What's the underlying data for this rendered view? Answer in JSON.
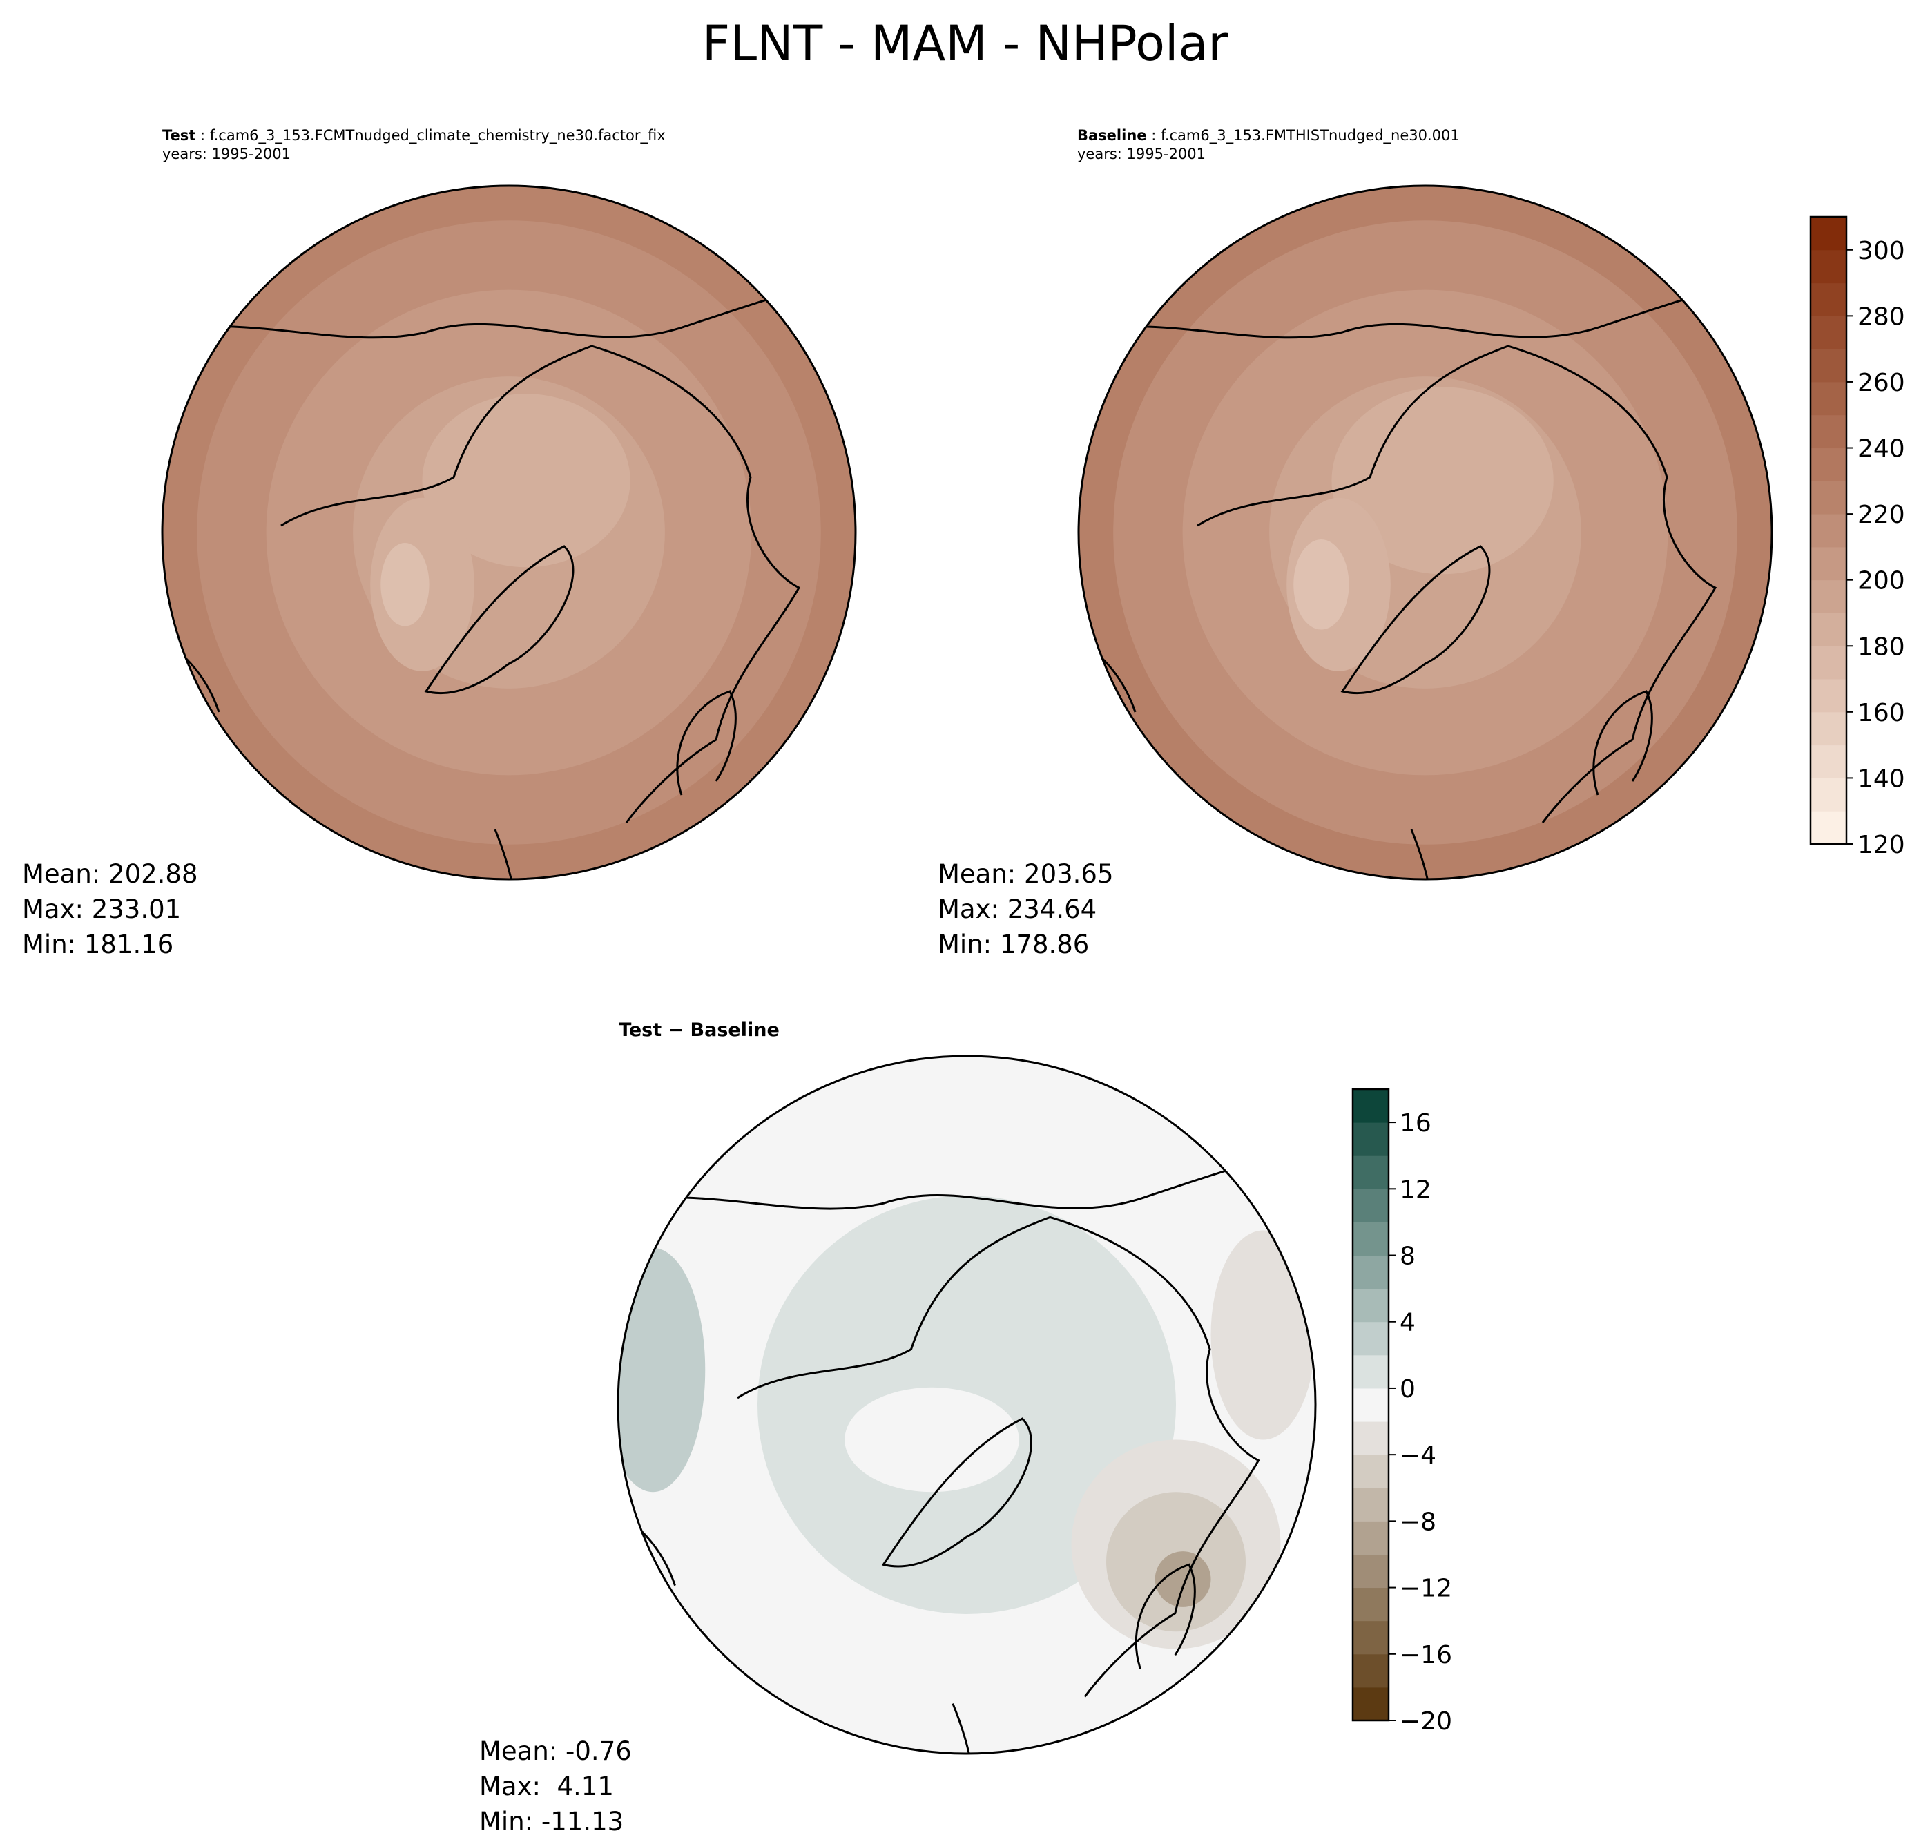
{
  "title": "FLNT - MAM - NHPolar",
  "panels": [
    {
      "label": "Test",
      "case": "f.cam6_3_153.FCMTnudged_climate_chemistry_ne30.factor_fix",
      "years": "years: 1995-2001",
      "stats": {
        "mean": "Mean: 202.88",
        "max": "Max: 233.01",
        "min": "Min: 181.16"
      }
    },
    {
      "label": "Baseline",
      "case": "f.cam6_3_153.FMTHISTnudged_ne30.001",
      "years": "years: 1995-2001",
      "stats": {
        "mean": "Mean: 203.65",
        "max": "Max: 234.64",
        "min": "Min: 178.86"
      }
    },
    {
      "label": "Test − Baseline",
      "stats": {
        "mean": "Mean: -0.76",
        "max": "Max:  4.11",
        "min": "Min: -11.13"
      }
    }
  ],
  "chart_data": [
    {
      "type": "heatmap",
      "projection": "north-polar-stereographic",
      "title": "Test",
      "colormap": "Oranges",
      "colorbar": {
        "range": [
          120,
          310
        ],
        "level_step": 10,
        "ticks": [
          "120",
          "140",
          "160",
          "180",
          "200",
          "220",
          "240",
          "260",
          "280",
          "300"
        ]
      },
      "mean": 202.88,
      "max": 233.01,
      "min": 181.16
    },
    {
      "type": "heatmap",
      "projection": "north-polar-stereographic",
      "title": "Baseline",
      "colormap": "Oranges",
      "mean": 203.65,
      "max": 234.64,
      "min": 178.86
    },
    {
      "type": "heatmap",
      "projection": "north-polar-stereographic",
      "title": "Test − Baseline",
      "colormap": "BrBG",
      "colorbar": {
        "range": [
          -20,
          18
        ],
        "level_step": 2,
        "ticks": [
          "−20",
          "−16",
          "−12",
          "−8",
          "−4",
          "0",
          "4",
          "8",
          "12",
          "16"
        ]
      },
      "mean": -0.76,
      "max": 4.11,
      "min": -11.13
    }
  ],
  "colors": {
    "oranges_low": "#fff5eb",
    "oranges_high": "#7f2704",
    "brbg_low": "#543005",
    "brbg_mid": "#f5f5f5",
    "brbg_high": "#003c30"
  }
}
